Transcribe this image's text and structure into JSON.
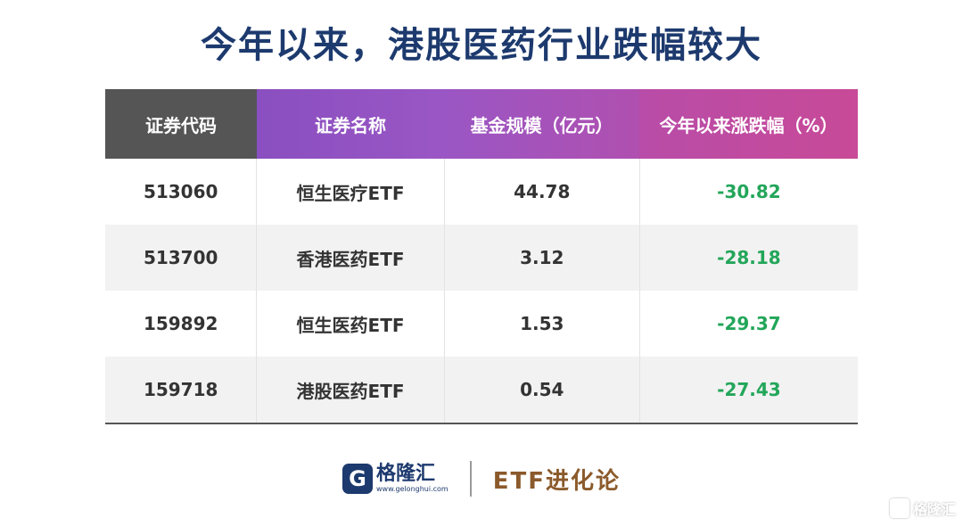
{
  "title": "今年以来，港股医药行业跌幅较大",
  "colors": {
    "title": "#1d3a6e",
    "header_col1": "#555555",
    "header_col2": "#8a4fc0",
    "header_col3": "#9a56c4",
    "header_col4": "#c04aa0",
    "negative_value": "#23a65a"
  },
  "table": {
    "headers": [
      "证券代码",
      "证券名称",
      "基金规模（亿元）",
      "今年以来涨跌幅（%）"
    ],
    "rows": [
      [
        "513060",
        "恒生医疗ETF",
        "44.78",
        "-30.82"
      ],
      [
        "513700",
        "香港医药ETF",
        "3.12",
        "-28.18"
      ],
      [
        "159892",
        "恒生医药ETF",
        "1.53",
        "-29.37"
      ],
      [
        "159718",
        "港股医药ETF",
        "0.54",
        "-27.43"
      ]
    ]
  },
  "footer": {
    "logo_icon": "G",
    "logo_name": "格隆汇",
    "logo_url": "www.gelonghui.com",
    "slogan": "ETF进化论"
  },
  "watermark": {
    "icon": "g-logo-icon",
    "text": "格隆汇"
  }
}
